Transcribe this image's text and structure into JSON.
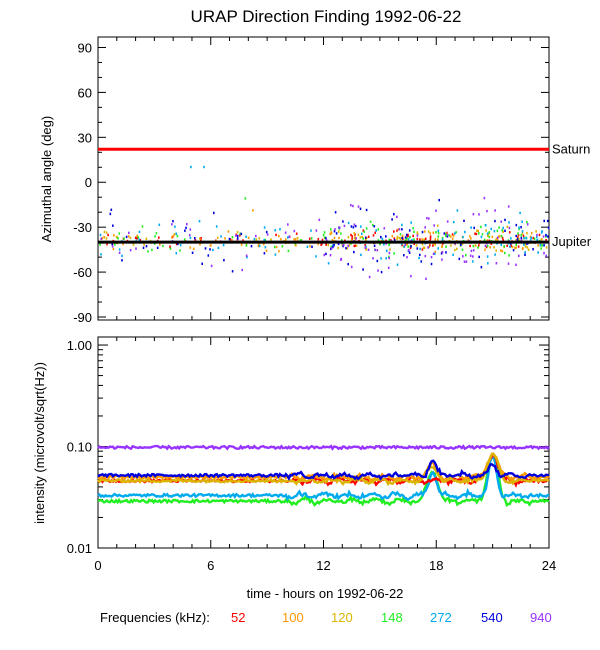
{
  "chart_data": [
    {
      "type": "scatter",
      "title": "URAP Direction Finding  1992-06-22",
      "ylabel": "Azimuthal angle (deg)",
      "xlim": [
        0,
        24
      ],
      "ylim": [
        -92,
        97
      ],
      "y_ticks": [
        90,
        60,
        30,
        0,
        -30,
        -60,
        -90
      ],
      "reference_lines": [
        {
          "label": "Saturn",
          "y": 22,
          "color": "#ff0000"
        },
        {
          "label": "Jupiter",
          "y": -40,
          "color": "#000000"
        }
      ],
      "series_spread_deg": [
        4,
        5,
        6,
        8,
        12,
        15,
        18
      ],
      "samples_per_series": 110
    },
    {
      "type": "line",
      "xlabel": "time - hours on 1992-06-22",
      "ylabel": "intensity (microvolt/sqrt(Hz))",
      "yscale": "log",
      "xlim": [
        0,
        24
      ],
      "ylim": [
        0.01,
        1.2
      ],
      "x_ticks": [
        0,
        6,
        12,
        18,
        24
      ],
      "y_ticks": [
        {
          "value": 1.0,
          "label": "1.00"
        },
        {
          "value": 0.1,
          "label": "0.10"
        },
        {
          "value": 0.01,
          "label": "0.01"
        }
      ],
      "baselines": [
        0.046,
        0.05,
        0.046,
        0.029,
        0.033,
        0.052,
        0.098
      ],
      "events": [
        {
          "hour": 17.8,
          "peak": 0.075
        },
        {
          "hour": 21.0,
          "peak": 0.11
        }
      ]
    }
  ],
  "legend": {
    "title": "Frequencies (kHz):",
    "items": [
      {
        "label": "52",
        "color": "#ff0000"
      },
      {
        "label": "100",
        "color": "#ff9900"
      },
      {
        "label": "120",
        "color": "#dcb400"
      },
      {
        "label": "148",
        "color": "#22ee22"
      },
      {
        "label": "272",
        "color": "#00aaee"
      },
      {
        "label": "540",
        "color": "#0000dd"
      },
      {
        "label": "940",
        "color": "#9933ff"
      }
    ]
  }
}
